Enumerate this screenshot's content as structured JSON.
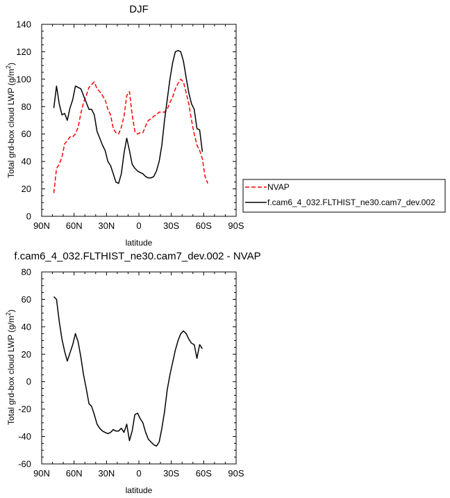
{
  "chart_data": [
    {
      "type": "line",
      "title": "DJF",
      "xlabel": "latitude",
      "ylabel": "Total grd-box cloud LWP (g/m",
      "ylabel_sup": "2",
      "ylabel_tail": ")",
      "xlim": [
        90,
        -90
      ],
      "ylim": [
        0,
        140
      ],
      "x_ticks": [
        90,
        60,
        30,
        0,
        -30,
        -60,
        -90
      ],
      "x_tick_labels": [
        "90N",
        "60N",
        "30N",
        "0",
        "30S",
        "60S",
        "90S"
      ],
      "y_ticks": [
        0,
        20,
        40,
        60,
        80,
        100,
        120,
        140
      ],
      "y_tick_labels": [
        "0",
        "20",
        "40",
        "60",
        "80",
        "100",
        "120",
        "140"
      ],
      "grid": false,
      "legend_position": "right",
      "series": [
        {
          "name": "NVAP",
          "color": "#ff0000",
          "dash": "dashed",
          "points": [
            [
              78.75,
              17
            ],
            [
              76.25,
              35
            ],
            [
              73.75,
              38
            ],
            [
              71.25,
              43
            ],
            [
              68.75,
              53
            ],
            [
              66.25,
              55
            ],
            [
              63.75,
              58
            ],
            [
              61.25,
              58
            ],
            [
              58.75,
              60
            ],
            [
              56.25,
              65
            ],
            [
              53.75,
              75
            ],
            [
              51.25,
              83
            ],
            [
              48.75,
              88
            ],
            [
              46.25,
              94
            ],
            [
              43.75,
              96
            ],
            [
              41.25,
              98
            ],
            [
              38.75,
              93
            ],
            [
              36.25,
              91
            ],
            [
              33.75,
              88
            ],
            [
              31.25,
              85
            ],
            [
              28.75,
              78
            ],
            [
              26.25,
              74
            ],
            [
              23.75,
              64
            ],
            [
              21.25,
              61
            ],
            [
              18.75,
              60
            ],
            [
              16.25,
              65
            ],
            [
              13.75,
              73
            ],
            [
              11.25,
              88
            ],
            [
              8.75,
              91
            ],
            [
              6.25,
              74
            ],
            [
              3.75,
              62
            ],
            [
              1.25,
              60
            ],
            [
              -1.25,
              61
            ],
            [
              -3.75,
              61
            ],
            [
              -6.25,
              66
            ],
            [
              -8.75,
              70
            ],
            [
              -11.25,
              71
            ],
            [
              -13.75,
              73
            ],
            [
              -16.25,
              74
            ],
            [
              -18.75,
              76
            ],
            [
              -21.25,
              76
            ],
            [
              -23.75,
              76
            ],
            [
              -26.25,
              78
            ],
            [
              -28.75,
              83
            ],
            [
              -31.25,
              87
            ],
            [
              -33.75,
              93
            ],
            [
              -36.25,
              97
            ],
            [
              -38.75,
              100
            ],
            [
              -41.25,
              98
            ],
            [
              -43.75,
              90
            ],
            [
              -46.25,
              82
            ],
            [
              -48.75,
              70
            ],
            [
              -51.25,
              60
            ],
            [
              -53.75,
              52
            ],
            [
              -56.25,
              48
            ],
            [
              -58.75,
              42
            ],
            [
              -61.25,
              29
            ],
            [
              -63.75,
              24
            ]
          ]
        },
        {
          "name": "f.cam6_4_032.FLTHIST_ne30.cam7_dev.002",
          "color": "#000000",
          "dash": "solid",
          "points": [
            [
              78.75,
              79
            ],
            [
              76.25,
              95
            ],
            [
              73.75,
              82
            ],
            [
              71.25,
              74
            ],
            [
              68.75,
              75
            ],
            [
              66.25,
              70
            ],
            [
              63.75,
              79
            ],
            [
              61.25,
              85
            ],
            [
              58.75,
              95
            ],
            [
              56.25,
              94
            ],
            [
              53.75,
              93
            ],
            [
              51.25,
              88
            ],
            [
              48.75,
              83
            ],
            [
              46.25,
              78
            ],
            [
              43.75,
              78
            ],
            [
              41.25,
              74
            ],
            [
              38.75,
              62
            ],
            [
              36.25,
              57
            ],
            [
              33.75,
              52
            ],
            [
              31.25,
              48
            ],
            [
              28.75,
              40
            ],
            [
              26.25,
              37
            ],
            [
              23.75,
              31
            ],
            [
              21.25,
              25
            ],
            [
              18.75,
              24
            ],
            [
              16.25,
              31
            ],
            [
              13.75,
              46
            ],
            [
              11.25,
              57
            ],
            [
              8.75,
              48
            ],
            [
              6.25,
              38
            ],
            [
              3.75,
              35
            ],
            [
              1.25,
              33
            ],
            [
              -1.25,
              32
            ],
            [
              -3.75,
              31
            ],
            [
              -6.25,
              29
            ],
            [
              -8.75,
              28
            ],
            [
              -11.25,
              28
            ],
            [
              -13.75,
              29
            ],
            [
              -16.25,
              33
            ],
            [
              -18.75,
              40
            ],
            [
              -21.25,
              52
            ],
            [
              -23.75,
              70
            ],
            [
              -26.25,
              85
            ],
            [
              -28.75,
              100
            ],
            [
              -31.25,
              112
            ],
            [
              -33.75,
              120
            ],
            [
              -36.25,
              121
            ],
            [
              -38.75,
              120
            ],
            [
              -41.25,
              113
            ],
            [
              -43.75,
              101
            ],
            [
              -46.25,
              90
            ],
            [
              -48.75,
              82
            ],
            [
              -51.25,
              78
            ],
            [
              -53.75,
              64
            ],
            [
              -56.25,
              63
            ],
            [
              -58.75,
              47
            ]
          ]
        }
      ]
    },
    {
      "type": "line",
      "title": "f.cam6_4_032.FLTHIST_ne30.cam7_dev.002 - NVAP",
      "xlabel": "latitude",
      "ylabel": "Total grd-box cloud LWP (g/m",
      "ylabel_sup": "2",
      "ylabel_tail": ")",
      "xlim": [
        90,
        -90
      ],
      "ylim": [
        -60,
        80
      ],
      "x_ticks": [
        90,
        60,
        30,
        0,
        -30,
        -60,
        -90
      ],
      "x_tick_labels": [
        "90N",
        "60N",
        "30N",
        "0",
        "30S",
        "60S",
        "90S"
      ],
      "y_ticks": [
        -60,
        -40,
        -20,
        0,
        20,
        40,
        60,
        80
      ],
      "y_tick_labels": [
        "-60",
        "-40",
        "-20",
        "0",
        "20",
        "40",
        "60",
        "80"
      ],
      "grid": false,
      "series": [
        {
          "color": "#000000",
          "dash": "solid",
          "points": [
            [
              78.75,
              62
            ],
            [
              76.25,
              60
            ],
            [
              73.75,
              44
            ],
            [
              71.25,
              31
            ],
            [
              68.75,
              22
            ],
            [
              66.25,
              15
            ],
            [
              63.75,
              21
            ],
            [
              61.25,
              27
            ],
            [
              58.75,
              35
            ],
            [
              56.25,
              29
            ],
            [
              53.75,
              18
            ],
            [
              51.25,
              5
            ],
            [
              48.75,
              -5
            ],
            [
              46.25,
              -16
            ],
            [
              43.75,
              -18
            ],
            [
              41.25,
              -24
            ],
            [
              38.75,
              -31
            ],
            [
              36.25,
              -34
            ],
            [
              33.75,
              -36
            ],
            [
              31.25,
              -37
            ],
            [
              28.75,
              -38
            ],
            [
              26.25,
              -37
            ],
            [
              23.75,
              -35
            ],
            [
              21.25,
              -36
            ],
            [
              18.75,
              -36
            ],
            [
              16.25,
              -34
            ],
            [
              13.75,
              -37
            ],
            [
              11.25,
              -31
            ],
            [
              8.75,
              -43
            ],
            [
              6.25,
              -36
            ],
            [
              3.75,
              -24
            ],
            [
              1.25,
              -23
            ],
            [
              -1.25,
              -27
            ],
            [
              -3.75,
              -30
            ],
            [
              -6.25,
              -37
            ],
            [
              -8.75,
              -42
            ],
            [
              -11.25,
              -44
            ],
            [
              -13.75,
              -46
            ],
            [
              -16.25,
              -47
            ],
            [
              -18.75,
              -44
            ],
            [
              -21.25,
              -34
            ],
            [
              -23.75,
              -22
            ],
            [
              -26.25,
              -6
            ],
            [
              -28.75,
              5
            ],
            [
              -31.25,
              14
            ],
            [
              -33.75,
              23
            ],
            [
              -36.25,
              30
            ],
            [
              -38.75,
              35
            ],
            [
              -41.25,
              37
            ],
            [
              -43.75,
              35
            ],
            [
              -46.25,
              31
            ],
            [
              -48.75,
              28
            ],
            [
              -51.25,
              27
            ],
            [
              -53.75,
              17
            ],
            [
              -56.25,
              27
            ],
            [
              -58.75,
              24
            ]
          ]
        }
      ]
    }
  ]
}
